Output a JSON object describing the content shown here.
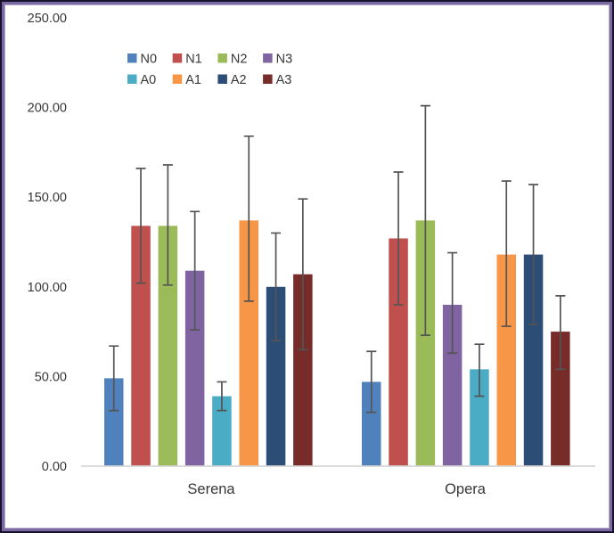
{
  "window": {
    "background": "#ffffff",
    "border_outer_color": "#18122c",
    "border_mid_color": "#7b69a3",
    "border_inner_color": "#b3a8cb"
  },
  "chart_data": {
    "type": "bar",
    "title": "",
    "categories": [
      "Serena",
      "Opera"
    ],
    "series": [
      {
        "name": "N0",
        "color": "#4F81BD",
        "values": [
          49,
          47
        ],
        "error_low": [
          31,
          30
        ],
        "error_high": [
          67,
          64
        ]
      },
      {
        "name": "N1",
        "color": "#C0504D",
        "values": [
          134,
          127
        ],
        "error_low": [
          102,
          90
        ],
        "error_high": [
          166,
          164
        ]
      },
      {
        "name": "N2",
        "color": "#9BBB59",
        "values": [
          134,
          137
        ],
        "error_low": [
          101,
          73
        ],
        "error_high": [
          168,
          201
        ]
      },
      {
        "name": "N3",
        "color": "#8064A2",
        "values": [
          109,
          90
        ],
        "error_low": [
          76,
          63
        ],
        "error_high": [
          142,
          119
        ]
      },
      {
        "name": "A0",
        "color": "#4BACC6",
        "values": [
          39,
          54
        ],
        "error_low": [
          31,
          39
        ],
        "error_high": [
          47,
          68
        ]
      },
      {
        "name": "A1",
        "color": "#F79646",
        "values": [
          137,
          118
        ],
        "error_low": [
          92,
          78
        ],
        "error_high": [
          184,
          159
        ]
      },
      {
        "name": "A2",
        "color": "#2C4D75",
        "values": [
          100,
          118
        ],
        "error_low": [
          70,
          79
        ],
        "error_high": [
          130,
          157
        ]
      },
      {
        "name": "A3",
        "color": "#772C2A",
        "values": [
          107,
          75
        ],
        "error_low": [
          65,
          54
        ],
        "error_high": [
          149,
          95
        ]
      }
    ],
    "ylim": [
      0,
      250
    ],
    "ytick_step": 50,
    "ytick_labels": [
      "0.00",
      "50.00",
      "100.00",
      "150.00",
      "200.00",
      "250.00"
    ],
    "grid": false,
    "legend_rows": [
      [
        "N0",
        "N1",
        "N2",
        "N3"
      ],
      [
        "A0",
        "A1",
        "A2",
        "A3"
      ]
    ],
    "legend_position": "top-left-inside",
    "error_bar_color": "#545454",
    "axis_line_color": "#d6d6d6",
    "text_color": "#373737"
  }
}
